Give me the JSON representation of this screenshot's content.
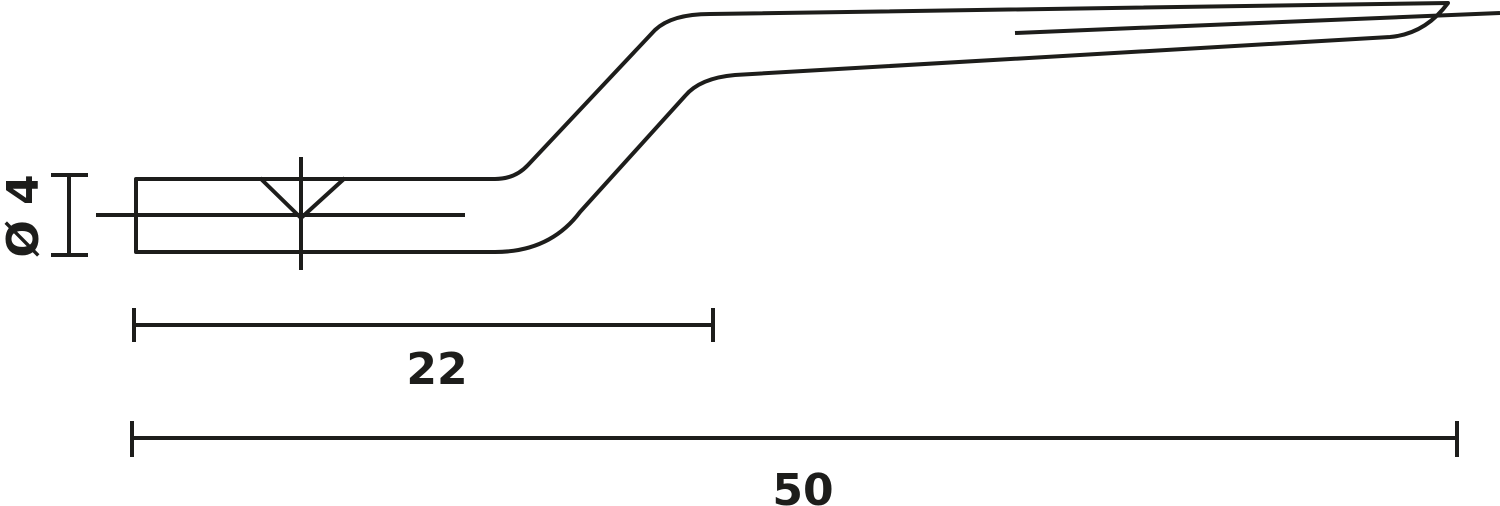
{
  "dimensions": {
    "diameter": "Ø 4",
    "offset_length": "22",
    "total_length": "50"
  },
  "colors": {
    "line": "#1d1d1b",
    "background": "#ffffff"
  }
}
